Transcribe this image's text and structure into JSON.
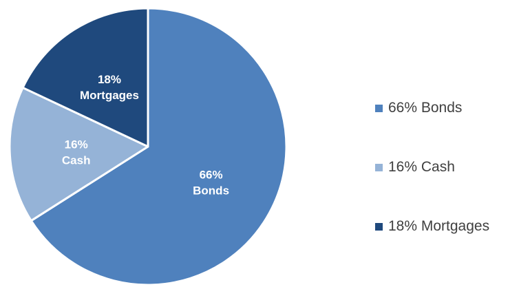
{
  "chart_data": {
    "type": "pie",
    "slices": [
      {
        "name": "Bonds",
        "value": 66,
        "label_pct": "66%",
        "label_name": "Bonds",
        "legend": "66% Bonds",
        "color": "#4F81BD"
      },
      {
        "name": "Cash",
        "value": 16,
        "label_pct": "16%",
        "label_name": "Cash",
        "legend": "16% Cash",
        "color": "#95B3D7"
      },
      {
        "name": "Mortgages",
        "value": 18,
        "label_pct": "18%",
        "label_name": "Mortgages",
        "legend": "18% Mortgages",
        "color": "#1F497D"
      }
    ],
    "legend_position": "right",
    "start_angle": "12 o'clock",
    "direction": "clockwise"
  }
}
